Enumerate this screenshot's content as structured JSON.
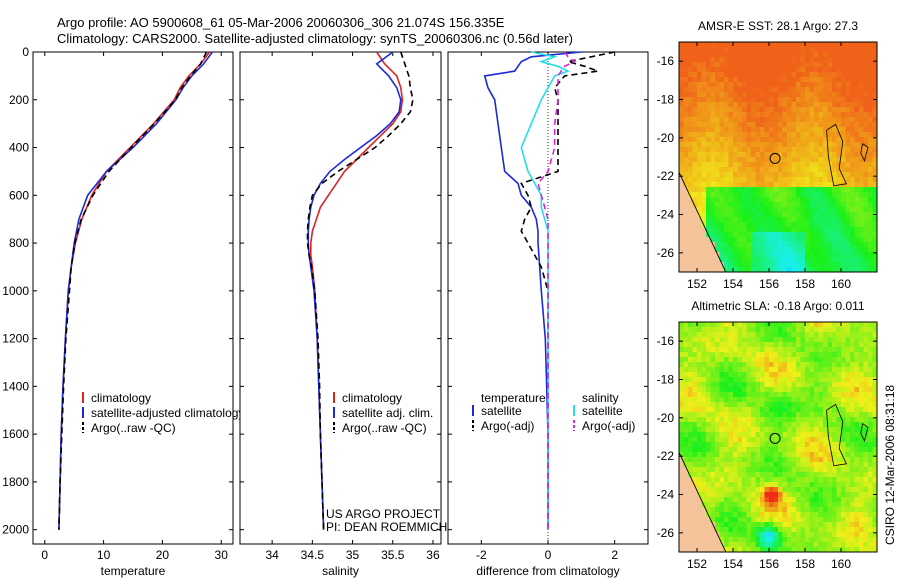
{
  "header": {
    "line1": "Argo profile: AO 5900608_61 05-Mar-2006 20060306_306 21.074S 156.335E",
    "line2": "Climatology: CARS2000. Satellite-adjusted climatology: synTS_20060306.nc (0.56d later)"
  },
  "side_label": "CSIRO 12-Mar-2006 08:31:18",
  "project": {
    "line1": "US ARGO PROJECT",
    "line2": "PI: DEAN ROEMMICH"
  },
  "colors": {
    "red": "#dd2222",
    "blue": "#1a2ad6",
    "black": "#000000",
    "cyan": "#22e0e8",
    "magenta": "#dd22dd",
    "land": "#f5c39a"
  },
  "chart_data": [
    {
      "type": "line",
      "name": "temperature_profile",
      "xlabel": "temperature",
      "ylabel": "",
      "xlim": [
        -2,
        32
      ],
      "ylim": [
        2060,
        0
      ],
      "xticks": [
        0,
        10,
        20,
        30
      ],
      "yticks": [
        0,
        200,
        400,
        600,
        800,
        1000,
        1200,
        1400,
        1600,
        1800,
        2000
      ],
      "depth": [
        0,
        50,
        100,
        150,
        200,
        300,
        400,
        500,
        600,
        700,
        800,
        900,
        1000,
        1200,
        1400,
        1600,
        1800,
        2000
      ],
      "series": [
        {
          "name": "climatology",
          "color": "red",
          "dash": false,
          "values": [
            28,
            26.5,
            24.5,
            23,
            22,
            18.5,
            14.5,
            10.5,
            8,
            6.3,
            5.2,
            4.5,
            4,
            3.5,
            3.1,
            2.8,
            2.6,
            2.4
          ]
        },
        {
          "name": "satellite-adjusted climatology",
          "color": "blue",
          "dash": false,
          "values": [
            28.5,
            27,
            25,
            23.5,
            22.3,
            19,
            15,
            10.5,
            7.3,
            5.8,
            5,
            4.5,
            4,
            3.5,
            3.1,
            2.8,
            2.6,
            2.4
          ]
        },
        {
          "name": "Argo(..raw -QC)",
          "color": "black",
          "dash": true,
          "values": [
            27.5,
            26.5,
            24.8,
            23.3,
            22.2,
            18.6,
            14.7,
            10.9,
            8.2,
            6.2,
            5.1,
            4.5,
            4.2,
            3.6,
            3.2,
            2.9,
            2.6,
            2.4
          ]
        }
      ],
      "legend": [
        "climatology",
        "satellite-adjusted climatology",
        "Argo(..raw -QC)"
      ]
    },
    {
      "type": "line",
      "name": "salinity_profile",
      "xlabel": "salinity",
      "ylabel": "",
      "xlim": [
        33.6,
        36.1
      ],
      "ylim": [
        2060,
        0
      ],
      "xticks": [
        34,
        34.5,
        35,
        35.5,
        36
      ],
      "yticks": [
        0,
        200,
        400,
        600,
        800,
        1000,
        1200,
        1400,
        1600,
        1800,
        2000
      ],
      "depth": [
        0,
        50,
        100,
        150,
        200,
        250,
        300,
        350,
        400,
        450,
        500,
        550,
        600,
        650,
        700,
        750,
        800,
        850,
        900,
        1000,
        1200,
        1400,
        1600,
        1800,
        2000
      ],
      "series": [
        {
          "name": "climatology",
          "color": "red",
          "dash": false,
          "values": [
            35.3,
            35.4,
            35.55,
            35.6,
            35.62,
            35.6,
            35.5,
            35.35,
            35.2,
            35.05,
            34.9,
            34.8,
            34.7,
            34.6,
            34.55,
            34.5,
            34.48,
            34.48,
            34.5,
            34.53,
            34.56,
            34.58,
            34.6,
            34.62,
            34.64
          ]
        },
        {
          "name": "satellite adj. clim.",
          "color": "blue",
          "dash": false,
          "values": [
            35.5,
            35.3,
            35.45,
            35.55,
            35.6,
            35.58,
            35.47,
            35.3,
            35.1,
            34.9,
            34.72,
            34.6,
            34.52,
            34.48,
            34.46,
            34.45,
            34.45,
            34.46,
            34.48,
            34.52,
            34.56,
            34.58,
            34.6,
            34.62,
            34.64
          ]
        },
        {
          "name": "Argo(..raw -QC)",
          "color": "black",
          "dash": true,
          "values": [
            35.6,
            35.65,
            35.7,
            35.72,
            35.75,
            35.72,
            35.6,
            35.45,
            35.28,
            35.05,
            34.82,
            34.62,
            34.5,
            34.47,
            34.45,
            34.44,
            34.44,
            34.46,
            34.49,
            34.53,
            34.57,
            34.59,
            34.6,
            34.62,
            34.64
          ]
        }
      ],
      "legend": [
        "climatology",
        "satellite adj. clim.",
        "Argo(..raw -QC)"
      ]
    },
    {
      "type": "line",
      "name": "difference_profile",
      "xlabel": "difference from climatology",
      "ylabel": "",
      "xlim": [
        -3,
        3
      ],
      "ylim": [
        2060,
        0
      ],
      "xticks": [
        -2,
        0,
        2
      ],
      "yticks": [
        0,
        200,
        400,
        600,
        800,
        1000,
        1200,
        1400,
        1600,
        1800,
        2000
      ],
      "depth": [
        0,
        20,
        40,
        60,
        80,
        100,
        150,
        200,
        300,
        400,
        500,
        550,
        600,
        650,
        700,
        750,
        800,
        900,
        1000,
        1200,
        1400,
        1600,
        1800,
        2000
      ],
      "series": [
        {
          "name": "temperature satellite",
          "color": "blue",
          "dash": false,
          "values": [
            1,
            -0.5,
            -0.8,
            -0.9,
            -1,
            -1.9,
            -1.8,
            -1.6,
            -1.5,
            -1.4,
            -1.3,
            -0.9,
            -0.8,
            -0.5,
            -0.35,
            -0.3,
            -0.3,
            -0.25,
            -0.2,
            -0.08,
            -0.04,
            0,
            0,
            0
          ]
        },
        {
          "name": "temperature Argo(-adj)",
          "color": "black",
          "dash": true,
          "values": [
            2,
            1.3,
            0.6,
            1.1,
            1.5,
            0.5,
            0.2,
            0.3,
            0.3,
            0.3,
            0.3,
            -0.8,
            -0.6,
            -0.5,
            -0.7,
            -0.8,
            -0.6,
            -0.2,
            0,
            0,
            0,
            0,
            0,
            0
          ]
        },
        {
          "name": "salinity satellite",
          "color": "cyan",
          "dash": false,
          "values": [
            -0.5,
            0.2,
            -0.2,
            0.3,
            0.6,
            0.2,
            0,
            -0.2,
            -0.5,
            -0.8,
            -0.6,
            -0.4,
            -0.2,
            -0.2,
            -0.1,
            0,
            0,
            0,
            0,
            0,
            0,
            0,
            0,
            0
          ]
        },
        {
          "name": "salinity Argo(-adj)",
          "color": "magenta",
          "dash": true,
          "values": [
            0.5,
            0.6,
            0.8,
            0.5,
            0.4,
            0.3,
            0.3,
            0.3,
            0.2,
            0.2,
            0,
            -0.3,
            -0.2,
            -0.1,
            0,
            0,
            0,
            0,
            0,
            0,
            0,
            0,
            0,
            0
          ]
        }
      ],
      "legend_headers": [
        "temperature",
        "salinity"
      ],
      "legend": [
        "satellite",
        "Argo(-adj)",
        "satellite",
        "Argo(-adj)"
      ]
    },
    {
      "type": "heatmap",
      "name": "sst_map",
      "title": "AMSR-E SST: 28.1 Argo: 27.3",
      "xlim": [
        151,
        162
      ],
      "ylim": [
        -27,
        -15
      ],
      "xticks": [
        152,
        154,
        156,
        158,
        160
      ],
      "yticks": [
        -16,
        -18,
        -20,
        -22,
        -24,
        -26
      ],
      "argo_marker": [
        156.335,
        -21.074
      ]
    },
    {
      "type": "heatmap",
      "name": "sla_map",
      "title": "Altimetric SLA: -0.18 Argo: 0.011",
      "xlim": [
        151,
        162
      ],
      "ylim": [
        -27,
        -15
      ],
      "xticks": [
        152,
        154,
        156,
        158,
        160
      ],
      "yticks": [
        -16,
        -18,
        -20,
        -22,
        -24,
        -26
      ],
      "argo_marker": [
        156.335,
        -21.074
      ]
    }
  ]
}
